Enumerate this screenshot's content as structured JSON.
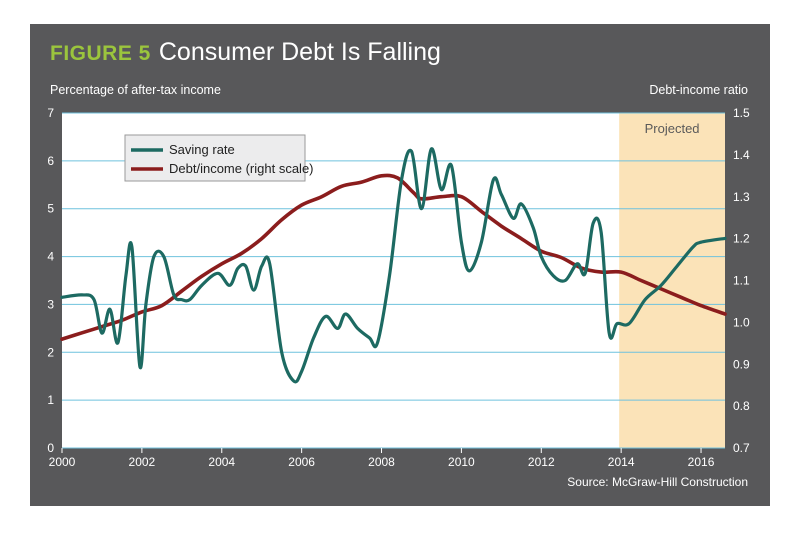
{
  "figure": {
    "label": "FIGURE 5",
    "title": "Consumer Debt Is Falling",
    "source": "Source: McGraw-Hill Construction"
  },
  "colors": {
    "panel": "#58585a",
    "plot_bg": "#ffffff",
    "grid": "#6fc2dd",
    "projected_band": "#fbe3b8",
    "saving_line": "#1d6a62",
    "debt_line": "#8b1d1d",
    "title_accent": "#9bc53d"
  },
  "chart_data": {
    "type": "line",
    "title": "Consumer Debt Is Falling",
    "xlabel": "",
    "ylabel": "Percentage of after-tax income",
    "ylabel_right": "Debt-income ratio",
    "xlim": [
      2000,
      2016.6
    ],
    "ylim": [
      0,
      7
    ],
    "ylim_right": [
      0.7,
      1.5
    ],
    "x_ticks": [
      2000,
      2002,
      2004,
      2006,
      2008,
      2010,
      2012,
      2014,
      2016
    ],
    "y_ticks": [
      0,
      1,
      2,
      3,
      4,
      5,
      6,
      7
    ],
    "y_ticks_right": [
      "0.7",
      "0.8",
      "0.9",
      "1.0",
      "1.1",
      "1.2",
      "1.3",
      "1.4",
      "1.5"
    ],
    "grid": true,
    "projected": {
      "label": "Projected",
      "start": 2013.95,
      "end": 2016.6
    },
    "legend": {
      "position": "top-left",
      "entries": [
        "Saving rate",
        "Debt/income (right scale)"
      ]
    },
    "series": [
      {
        "name": "Saving rate",
        "axis": "left",
        "points": [
          [
            2000.0,
            3.15
          ],
          [
            2000.5,
            3.2
          ],
          [
            2000.8,
            3.1
          ],
          [
            2001.0,
            2.4
          ],
          [
            2001.2,
            2.9
          ],
          [
            2001.4,
            2.2
          ],
          [
            2001.6,
            3.6
          ],
          [
            2001.75,
            4.2
          ],
          [
            2001.95,
            1.7
          ],
          [
            2002.1,
            3.0
          ],
          [
            2002.3,
            4.0
          ],
          [
            2002.55,
            4.0
          ],
          [
            2002.8,
            3.2
          ],
          [
            2003.0,
            3.1
          ],
          [
            2003.2,
            3.1
          ],
          [
            2003.5,
            3.4
          ],
          [
            2003.9,
            3.65
          ],
          [
            2004.2,
            3.4
          ],
          [
            2004.4,
            3.75
          ],
          [
            2004.6,
            3.8
          ],
          [
            2004.8,
            3.3
          ],
          [
            2005.0,
            3.8
          ],
          [
            2005.2,
            3.85
          ],
          [
            2005.5,
            2.0
          ],
          [
            2005.8,
            1.4
          ],
          [
            2006.0,
            1.6
          ],
          [
            2006.3,
            2.3
          ],
          [
            2006.6,
            2.75
          ],
          [
            2006.9,
            2.5
          ],
          [
            2007.1,
            2.8
          ],
          [
            2007.4,
            2.5
          ],
          [
            2007.7,
            2.3
          ],
          [
            2007.9,
            2.2
          ],
          [
            2008.2,
            3.6
          ],
          [
            2008.5,
            5.6
          ],
          [
            2008.75,
            6.2
          ],
          [
            2009.0,
            5.0
          ],
          [
            2009.25,
            6.25
          ],
          [
            2009.5,
            5.4
          ],
          [
            2009.75,
            5.9
          ],
          [
            2010.0,
            4.3
          ],
          [
            2010.2,
            3.7
          ],
          [
            2010.5,
            4.3
          ],
          [
            2010.8,
            5.6
          ],
          [
            2011.0,
            5.3
          ],
          [
            2011.3,
            4.8
          ],
          [
            2011.5,
            5.1
          ],
          [
            2011.8,
            4.6
          ],
          [
            2012.0,
            4.0
          ],
          [
            2012.3,
            3.6
          ],
          [
            2012.6,
            3.5
          ],
          [
            2012.9,
            3.85
          ],
          [
            2013.1,
            3.65
          ],
          [
            2013.3,
            4.7
          ],
          [
            2013.5,
            4.5
          ],
          [
            2013.7,
            2.4
          ],
          [
            2013.9,
            2.6
          ],
          [
            2014.2,
            2.6
          ],
          [
            2014.6,
            3.1
          ],
          [
            2015.0,
            3.4
          ],
          [
            2015.4,
            3.8
          ],
          [
            2015.8,
            4.2
          ],
          [
            2016.0,
            4.3
          ],
          [
            2016.6,
            4.38
          ]
        ]
      },
      {
        "name": "Debt/income (right scale)",
        "axis": "right",
        "points": [
          [
            2000.0,
            0.96
          ],
          [
            2000.5,
            0.975
          ],
          [
            2001.0,
            0.99
          ],
          [
            2001.5,
            1.005
          ],
          [
            2002.0,
            1.025
          ],
          [
            2002.5,
            1.04
          ],
          [
            2003.0,
            1.075
          ],
          [
            2003.5,
            1.11
          ],
          [
            2004.0,
            1.14
          ],
          [
            2004.5,
            1.165
          ],
          [
            2005.0,
            1.2
          ],
          [
            2005.5,
            1.245
          ],
          [
            2006.0,
            1.28
          ],
          [
            2006.5,
            1.3
          ],
          [
            2007.0,
            1.325
          ],
          [
            2007.5,
            1.335
          ],
          [
            2008.0,
            1.35
          ],
          [
            2008.4,
            1.345
          ],
          [
            2008.8,
            1.31
          ],
          [
            2009.0,
            1.295
          ],
          [
            2009.5,
            1.3
          ],
          [
            2010.0,
            1.3
          ],
          [
            2010.5,
            1.265
          ],
          [
            2011.0,
            1.23
          ],
          [
            2011.5,
            1.2
          ],
          [
            2012.0,
            1.17
          ],
          [
            2012.5,
            1.155
          ],
          [
            2013.0,
            1.13
          ],
          [
            2013.5,
            1.12
          ],
          [
            2014.0,
            1.12
          ],
          [
            2014.5,
            1.1
          ],
          [
            2015.0,
            1.08
          ],
          [
            2015.5,
            1.06
          ],
          [
            2016.0,
            1.04
          ],
          [
            2016.6,
            1.02
          ]
        ]
      }
    ]
  }
}
